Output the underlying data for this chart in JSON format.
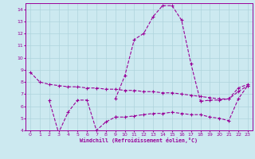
{
  "background_color": "#cce9f0",
  "grid_color": "#aed4dc",
  "line_color": "#990099",
  "marker": "+",
  "xlabel": "Windchill (Refroidissement éolien,°C)",
  "xlim": [
    -0.5,
    23.5
  ],
  "ylim": [
    4,
    14.5
  ],
  "xticks": [
    0,
    1,
    2,
    3,
    4,
    5,
    6,
    7,
    8,
    9,
    10,
    11,
    12,
    13,
    14,
    15,
    16,
    17,
    18,
    19,
    20,
    21,
    22,
    23
  ],
  "yticks": [
    4,
    5,
    6,
    7,
    8,
    9,
    10,
    11,
    12,
    13,
    14
  ],
  "lines": [
    {
      "x": [
        0,
        1,
        2,
        3,
        4,
        5,
        6,
        7,
        8,
        9,
        10,
        11,
        12,
        13,
        14,
        15,
        16,
        17,
        18,
        19,
        20,
        21,
        22,
        23
      ],
      "y": [
        8.8,
        8.0,
        7.8,
        7.7,
        7.6,
        7.6,
        7.5,
        7.5,
        7.4,
        7.4,
        7.3,
        7.3,
        7.2,
        7.2,
        7.1,
        7.1,
        7.0,
        6.9,
        6.8,
        6.7,
        6.6,
        6.6,
        7.2,
        7.7
      ]
    },
    {
      "x": [
        2,
        3,
        4,
        5,
        6,
        7,
        8,
        9
      ],
      "y": [
        6.5,
        3.8,
        5.5,
        6.5,
        6.5,
        4.0,
        4.7,
        5.1
      ]
    },
    {
      "x": [
        9,
        10,
        11,
        12,
        13,
        14,
        15,
        16,
        17,
        18
      ],
      "y": [
        6.6,
        8.5,
        11.5,
        12.0,
        13.4,
        14.3,
        14.3,
        13.1,
        9.5,
        6.4
      ]
    },
    {
      "x": [
        18,
        19,
        20,
        21,
        22,
        23
      ],
      "y": [
        6.4,
        6.5,
        6.5,
        6.6,
        7.5,
        7.8
      ]
    },
    {
      "x": [
        9,
        10,
        11,
        12,
        13,
        14,
        15,
        16,
        17,
        18,
        19,
        20,
        21,
        22,
        23
      ],
      "y": [
        5.1,
        5.1,
        5.2,
        5.3,
        5.4,
        5.4,
        5.5,
        5.4,
        5.3,
        5.3,
        5.1,
        5.0,
        4.8,
        6.6,
        7.7
      ]
    }
  ]
}
